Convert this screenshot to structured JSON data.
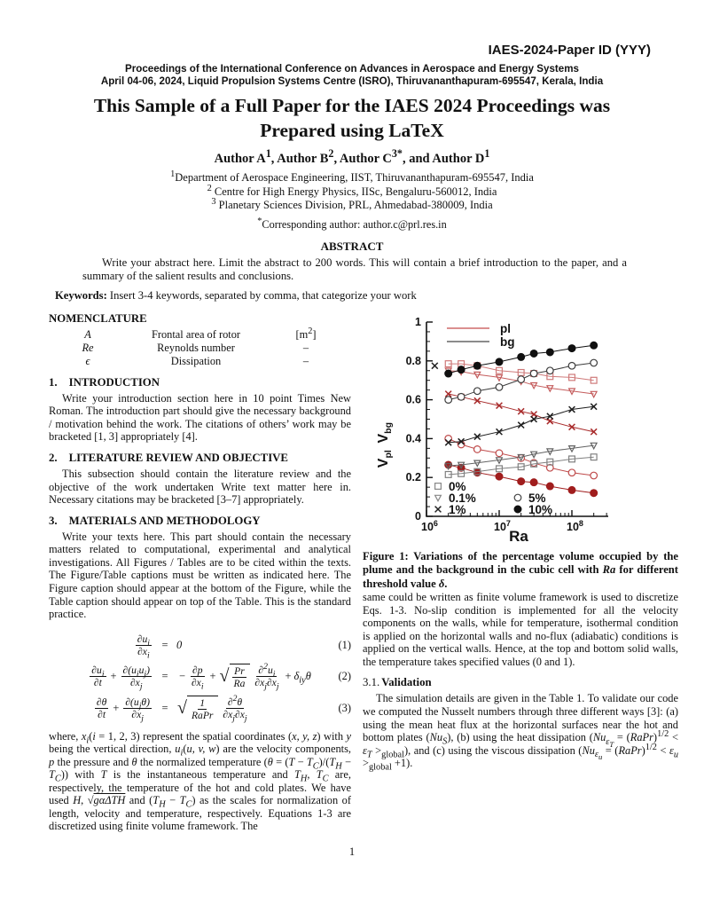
{
  "header": {
    "paper_id": "IAES-2024-Paper ID (YYY)",
    "proceedings_line1": "Proceedings of the International Conference on Advances in Aerospace and Energy Systems",
    "proceedings_line2": "April 04-06, 2024, Liquid Propulsion Systems Centre (ISRO), Thiruvananthapuram-695547, Kerala, India"
  },
  "title": "This Sample of a Full Paper for the IAES 2024 Proceedings was Prepared using LaTeX",
  "authors_html": "Author A<sup>1</sup>, Author B<sup>2</sup>, Author C<sup>3*</sup>, and Author D<sup>1</sup>",
  "affiliations_html": [
    "<sup>1</sup>Department of Aerospace Engineering, IIST, Thiruvananthapuram-695547, India",
    "<sup>2</sup> Centre for High Energy Physics, IISc, Bengaluru-560012, India",
    "<sup>3</sup> Planetary Sciences Division, PRL, Ahmedabad-380009, India"
  ],
  "corresponding_html": "<sup>*</sup>Corresponding author: author.c@prl.res.in",
  "abstract": {
    "heading": "ABSTRACT",
    "text": "Write your abstract here. Limit the abstract to 200 words. This will contain a brief introduction to the paper, and a summary of the salient results and conclusions."
  },
  "keywords": {
    "label": "Keywords:",
    "text": " Insert 3-4 keywords, separated by comma, that categorize your work"
  },
  "nomenclature": {
    "heading": "NOMENCLATURE",
    "rows": [
      {
        "symbol": "A",
        "desc": "Frontal area of rotor",
        "unit_html": "[m<sup>2</sup>]"
      },
      {
        "symbol": "Re",
        "desc": "Reynolds number",
        "unit_html": "–"
      },
      {
        "symbol": "ϵ",
        "desc": "Dissipation",
        "unit_html": "–"
      }
    ]
  },
  "sections": [
    {
      "num": "1.",
      "title": "INTRODUCTION",
      "body": "Write your introduction section here in 10 point Times New Roman. The introduction part should give the necessary background / motivation behind the work. The citations of others’ work may be bracketed [1, 3] appropriately [4]."
    },
    {
      "num": "2.",
      "title": "LITERATURE REVIEW AND OBJECTIVE",
      "body": "This subsection should contain the literature review and the objective of the work undertaken Write text matter here in. Necessary citations may be bracketed [3–7] appropriately."
    },
    {
      "num": "3.",
      "title": "MATERIALS AND METHODOLOGY",
      "body": "Write your texts here. This part should contain the necessary matters related to computational, experimental and analytical investigations. All Figures / Tables are to be cited within the texts. The Figure/Table captions must be written as indicated here. The Figure caption should appear at the bottom of the Figure, while the Table caption should appear on top of the Table. This is the standard practice."
    }
  ],
  "equations": [
    {
      "number": "(1)",
      "lhs": [
        {
          "t": "frac",
          "n": "∂u<sub>i</sub>",
          "d": "∂x<sub>i</sub>"
        }
      ],
      "rhs": [
        {
          "t": "txt",
          "v": "0"
        }
      ]
    },
    {
      "number": "(2)",
      "lhs": [
        {
          "t": "frac",
          "n": "∂u<sub>i</sub>",
          "d": "∂t"
        },
        {
          "t": "op",
          "v": "+"
        },
        {
          "t": "frac",
          "n": "∂(u<sub>i</sub>u<sub>j</sub>)",
          "d": "∂x<sub>j</sub>"
        }
      ],
      "rhs": [
        {
          "t": "op",
          "v": "−"
        },
        {
          "t": "frac",
          "n": "∂p",
          "d": "∂x<sub>i</sub>"
        },
        {
          "t": "op",
          "v": "+"
        },
        {
          "t": "sqrtfrac",
          "n": "Pr",
          "d": "Ra"
        },
        {
          "t": "frac",
          "n": "∂<sup>2</sup>u<sub>i</sub>",
          "d": "∂x<sub>j</sub>∂x<sub>j</sub>"
        },
        {
          "t": "op",
          "v": "+"
        },
        {
          "t": "txt",
          "v": "δ<sub>iy</sub>θ"
        }
      ]
    },
    {
      "number": "(3)",
      "lhs": [
        {
          "t": "frac",
          "n": "∂θ",
          "d": "∂t"
        },
        {
          "t": "op",
          "v": "+"
        },
        {
          "t": "frac",
          "n": "∂(u<sub>j</sub>θ)",
          "d": "∂x<sub>j</sub>"
        }
      ],
      "rhs": [
        {
          "t": "sqrtfrac",
          "n": "1",
          "d": "RaPr"
        },
        {
          "t": "frac",
          "n": "∂<sup>2</sup>θ",
          "d": "∂x<sub>j</sub>∂x<sub>j</sub>"
        }
      ]
    }
  ],
  "where_paragraph_html": "where, <i>x<sub>i</sub></i>(<i>i</i> = 1, 2, 3) represent the spatial coordinates (<i>x, y, z</i>) with <i>y</i> being the vertical direction, <i>u<sub>i</sub></i>(<i>u, v, w</i>) are the velocity components, <i>p</i> the pressure and <i>θ</i> the normalized temperature (<i>θ</i> = (<i>T</i> − <i>T<sub>C</sub></i>)/(<i>T<sub>H</sub></i> − <i>T<sub>C</sub></i>)) with <i>T</i> is the instantaneous temperature and <i>T<sub>H</sub></i>, <i>T<sub>C</sub></i> are, respectively, the temperature of the hot and cold plates. We have used <i>H</i>, √<span class=\"ol\"><i>gαΔTH</i></span> and (<i>T<sub>H</sub></i> − <i>T<sub>C</sub></i>) as the scales for normalization of length, velocity and temperature, respectively. Equations 1-3 are discretized using finite volume framework. The",
  "figure": {
    "caption_html": "<b>Figure 1: Variations of the percentage volume occupied by the plume and the background in the cubic cell with <i>Ra</i> for different threshold value <i>δ</i>.</b>"
  },
  "right_column": {
    "para1": "same could be written as finite volume framework is used to discretize Eqs. 1-3. No-slip condition is implemented for all the velocity components on the walls, while for temperature, isothermal condition is applied on the horizontal walls and no-flux (adiabatic) conditions is applied on the vertical walls. Hence, at the top and bottom solid walls, the temperature takes specified values (0 and 1).",
    "validation_num": "3.1.",
    "validation_title": "Validation",
    "validation_para_html": "The simulation details are given in the Table 1. To validate our code we computed the Nusselt numbers through three different ways [3]: (a) using the mean heat flux at the horizontal surfaces near the hot and bottom plates (<i>Nu<sub>S</sub></i>), (b) using the heat dissipation (<i>Nu<sub>ε<sub>T</sub></sub></i> = (<i>RaPr</i>)<sup>1/2</sup> &lt; <i>ε<sub>T</sub></i> &gt;<sub>global</sub>), and (c) using the viscous dissipation (<i>Nu<sub>ε<sub>u</sub></sub></i> = (<i>RaPr</i>)<sup>1/2</sup> &lt; <i>ε<sub>u</sub></i> &gt;<sub>global</sub> +1)."
  },
  "page_number": "1",
  "chart_data": {
    "type": "line",
    "xlabel": "Ra",
    "ylabel_parts": [
      "V",
      "pl",
      " V",
      "bg"
    ],
    "xscale": "log",
    "xlim": [
      1000000,
      316000000
    ],
    "ylim": [
      0,
      1
    ],
    "xticks": [
      {
        "value": 1000000,
        "label_base": "10",
        "label_exp": "6"
      },
      {
        "value": 10000000,
        "label_base": "10",
        "label_exp": "7"
      },
      {
        "value": 100000000,
        "label_base": "10",
        "label_exp": "8"
      }
    ],
    "yticks": [
      "0",
      "0.2",
      "0.4",
      "0.6",
      "0.8",
      "1"
    ],
    "x": [
      2000000,
      3000000,
      5000000,
      10000000,
      20000000,
      30000000,
      50000000,
      100000000,
      200000000
    ],
    "line_legend": [
      {
        "label": "pl",
        "color": "#cf6a6a"
      },
      {
        "label": "bg",
        "color": "#666666"
      }
    ],
    "marker_legend": [
      {
        "marker": "square-open",
        "label": "0%",
        "color": "#888888",
        "col": 0,
        "row": 0
      },
      {
        "marker": "triangle-open",
        "label": "0.1%",
        "color": "#888888",
        "col": 0,
        "row": 1
      },
      {
        "marker": "x",
        "label": "1%",
        "color": "#222222",
        "col": 0,
        "row": 2
      },
      {
        "marker": "circle-open",
        "label": "5%",
        "color": "#444444",
        "col": 1,
        "row": 1
      },
      {
        "marker": "circle-filled",
        "label": "10%",
        "color": "#111111",
        "col": 1,
        "row": 2
      }
    ],
    "series": [
      {
        "name": "pl 0%",
        "group": "pl",
        "marker": "square-open",
        "color": "#cf7a7a",
        "values": [
          0.785,
          0.785,
          0.775,
          0.75,
          0.74,
          0.735,
          0.72,
          0.715,
          0.7
        ]
      },
      {
        "name": "pl 0.1%",
        "group": "pl",
        "marker": "triangle-open",
        "color": "#c45c5c",
        "values": [
          0.75,
          0.745,
          0.73,
          0.715,
          0.695,
          0.675,
          0.66,
          0.645,
          0.63
        ]
      },
      {
        "name": "pl 1%",
        "group": "pl",
        "marker": "x",
        "color": "#a82a2a",
        "values": [
          0.63,
          0.615,
          0.595,
          0.57,
          0.54,
          0.525,
          0.49,
          0.46,
          0.435
        ]
      },
      {
        "name": "pl 5%",
        "group": "pl",
        "marker": "circle-open",
        "color": "#bf4a4a",
        "values": [
          0.4,
          0.37,
          0.345,
          0.325,
          0.3,
          0.275,
          0.25,
          0.225,
          0.21
        ]
      },
      {
        "name": "pl 10%",
        "group": "pl",
        "marker": "circle-filled",
        "color": "#a01d1d",
        "values": [
          0.265,
          0.25,
          0.225,
          0.205,
          0.18,
          0.175,
          0.155,
          0.135,
          0.12
        ]
      },
      {
        "name": "bg 0%",
        "group": "bg",
        "marker": "square-open",
        "color": "#808080",
        "values": [
          0.215,
          0.22,
          0.23,
          0.245,
          0.255,
          0.27,
          0.28,
          0.295,
          0.305
        ]
      },
      {
        "name": "bg 0.1%",
        "group": "bg",
        "marker": "triangle-open",
        "color": "#636363",
        "values": [
          0.26,
          0.265,
          0.275,
          0.29,
          0.305,
          0.32,
          0.335,
          0.35,
          0.365
        ]
      },
      {
        "name": "bg 1%",
        "group": "bg",
        "marker": "x",
        "color": "#1e1e1e",
        "values": [
          0.38,
          0.385,
          0.41,
          0.435,
          0.47,
          0.5,
          0.515,
          0.55,
          0.565
        ]
      },
      {
        "name": "bg 5%",
        "group": "bg",
        "marker": "circle-open",
        "color": "#3c3c3c",
        "values": [
          0.6,
          0.615,
          0.645,
          0.665,
          0.705,
          0.735,
          0.75,
          0.775,
          0.79
        ]
      },
      {
        "name": "bg 10%",
        "group": "bg",
        "marker": "circle-filled",
        "color": "#101010",
        "values": [
          0.735,
          0.755,
          0.775,
          0.795,
          0.82,
          0.838,
          0.845,
          0.865,
          0.88
        ]
      }
    ],
    "stray_marker": {
      "x": 1300000,
      "y": 0.775,
      "marker": "x",
      "color": "#222222"
    }
  }
}
